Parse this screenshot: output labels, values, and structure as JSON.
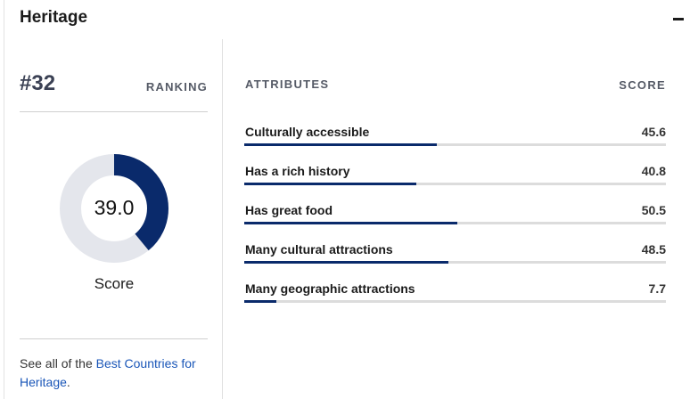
{
  "section": {
    "title": "Heritage"
  },
  "ranking": {
    "value": "#32",
    "label": "RANKING"
  },
  "score": {
    "value": "39.0",
    "fraction": 0.39,
    "label": "Score",
    "accent": "#0a2a6b",
    "track": "#e4e6ec"
  },
  "footer": {
    "prefix": "See all of the ",
    "link": "Best Countries for Heritage",
    "suffix": "."
  },
  "attributes": {
    "header_attr": "ATTRIBUTES",
    "header_score": "SCORE",
    "items": [
      {
        "label": "Culturally accessible",
        "score": "45.6",
        "value": 45.6
      },
      {
        "label": "Has a rich history",
        "score": "40.8",
        "value": 40.8
      },
      {
        "label": "Has great food",
        "score": "50.5",
        "value": 50.5
      },
      {
        "label": "Many cultural attractions",
        "score": "48.5",
        "value": 48.5
      },
      {
        "label": "Many geographic attractions",
        "score": "7.7",
        "value": 7.7
      }
    ]
  },
  "icons": {
    "collapse": "minus-icon"
  }
}
